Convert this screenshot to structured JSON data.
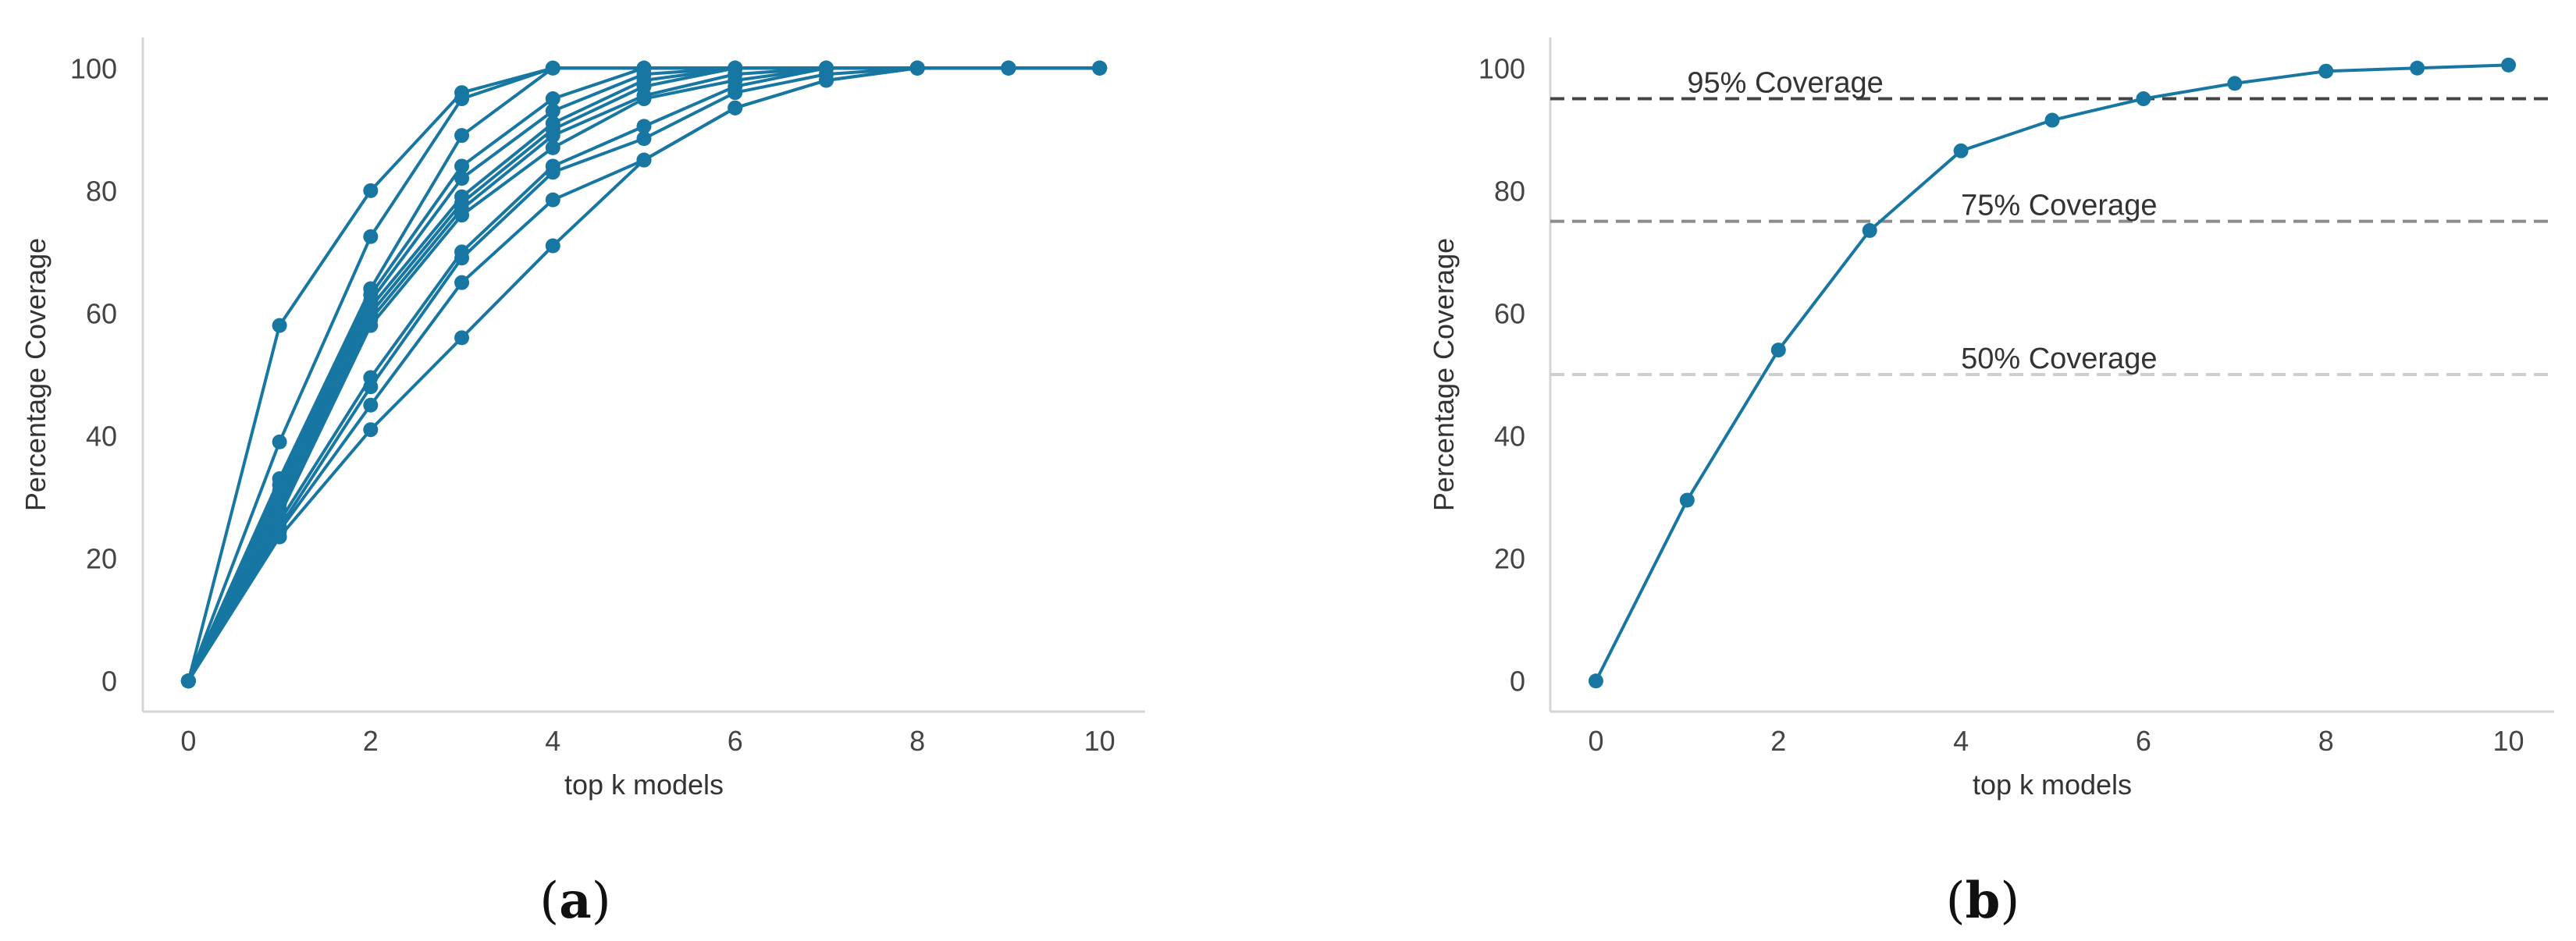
{
  "colors": {
    "series": "#1777a2",
    "axis": "#d5d5d5",
    "ref_dark": "#444444",
    "ref_mid": "#8c8c8c",
    "ref_light": "#cfcfcf"
  },
  "chart_data": [
    {
      "type": "line",
      "panel": "a",
      "xlabel": "top k models",
      "ylabel": "Percentage Coverage",
      "xlim": [
        -0.5,
        10.5
      ],
      "ylim": [
        -5,
        105
      ],
      "xticks": [
        0,
        2,
        4,
        6,
        8,
        10
      ],
      "yticks": [
        0,
        20,
        40,
        60,
        80,
        100
      ],
      "grid": false,
      "x": [
        0,
        1,
        2,
        3,
        4,
        5,
        6,
        7,
        8,
        9,
        10
      ],
      "series": [
        {
          "values": [
            0,
            58,
            80,
            96,
            100,
            100,
            100,
            100,
            100,
            100,
            100
          ]
        },
        {
          "values": [
            0,
            39,
            72.5,
            95,
            100,
            100,
            100,
            100,
            100,
            100,
            100
          ]
        },
        {
          "values": [
            0,
            33,
            64,
            89,
            100,
            100,
            100,
            100,
            100,
            100,
            100
          ]
        },
        {
          "values": [
            0,
            32,
            63,
            84,
            95,
            100,
            100,
            100,
            100,
            100,
            100
          ]
        },
        {
          "values": [
            0,
            31,
            62,
            82,
            93,
            99,
            100,
            100,
            100,
            100,
            100
          ]
        },
        {
          "values": [
            0,
            30,
            61,
            79,
            91,
            98,
            100,
            100,
            100,
            100,
            100
          ]
        },
        {
          "values": [
            0,
            29,
            60,
            78,
            90,
            97,
            100,
            100,
            100,
            100,
            100
          ]
        },
        {
          "values": [
            0,
            28,
            59,
            77,
            89,
            95.5,
            99,
            100,
            100,
            100,
            100
          ]
        },
        {
          "values": [
            0,
            27,
            58,
            76,
            87,
            95,
            98,
            100,
            100,
            100,
            100
          ]
        },
        {
          "values": [
            0,
            26,
            49.5,
            70,
            84,
            90.5,
            97,
            100,
            100,
            100,
            100
          ]
        },
        {
          "values": [
            0,
            25,
            48,
            69,
            83,
            88.5,
            96,
            99,
            100,
            100,
            100
          ]
        },
        {
          "values": [
            0,
            24.5,
            45,
            65,
            78.5,
            85,
            93.5,
            98,
            100,
            100,
            100
          ]
        },
        {
          "values": [
            0,
            23.5,
            41,
            56,
            71,
            85,
            93.5,
            98,
            100,
            100,
            100
          ]
        }
      ]
    },
    {
      "type": "line",
      "panel": "b",
      "xlabel": "top k models",
      "ylabel": "Percentage Coverage",
      "xlim": [
        -0.5,
        10.5
      ],
      "ylim": [
        -5,
        105
      ],
      "xticks": [
        0,
        2,
        4,
        6,
        8,
        10
      ],
      "yticks": [
        0,
        20,
        40,
        60,
        80,
        100
      ],
      "grid": false,
      "x": [
        0,
        1,
        2,
        3,
        4,
        5,
        6,
        7,
        8,
        9,
        10
      ],
      "series": [
        {
          "values": [
            0,
            29.5,
            54,
            73.5,
            86.5,
            91.5,
            95,
            97.5,
            99.5,
            100,
            100.5
          ]
        }
      ],
      "reference_lines": [
        {
          "y": 95,
          "label": "95% Coverage",
          "label_x": 1.0,
          "style": "ref_dark"
        },
        {
          "y": 75,
          "label": "75% Coverage",
          "label_x": 4.0,
          "style": "ref_mid"
        },
        {
          "y": 50,
          "label": "50% Coverage",
          "label_x": 4.0,
          "style": "ref_light"
        }
      ]
    }
  ],
  "captions": {
    "a": "a",
    "b": "b"
  }
}
